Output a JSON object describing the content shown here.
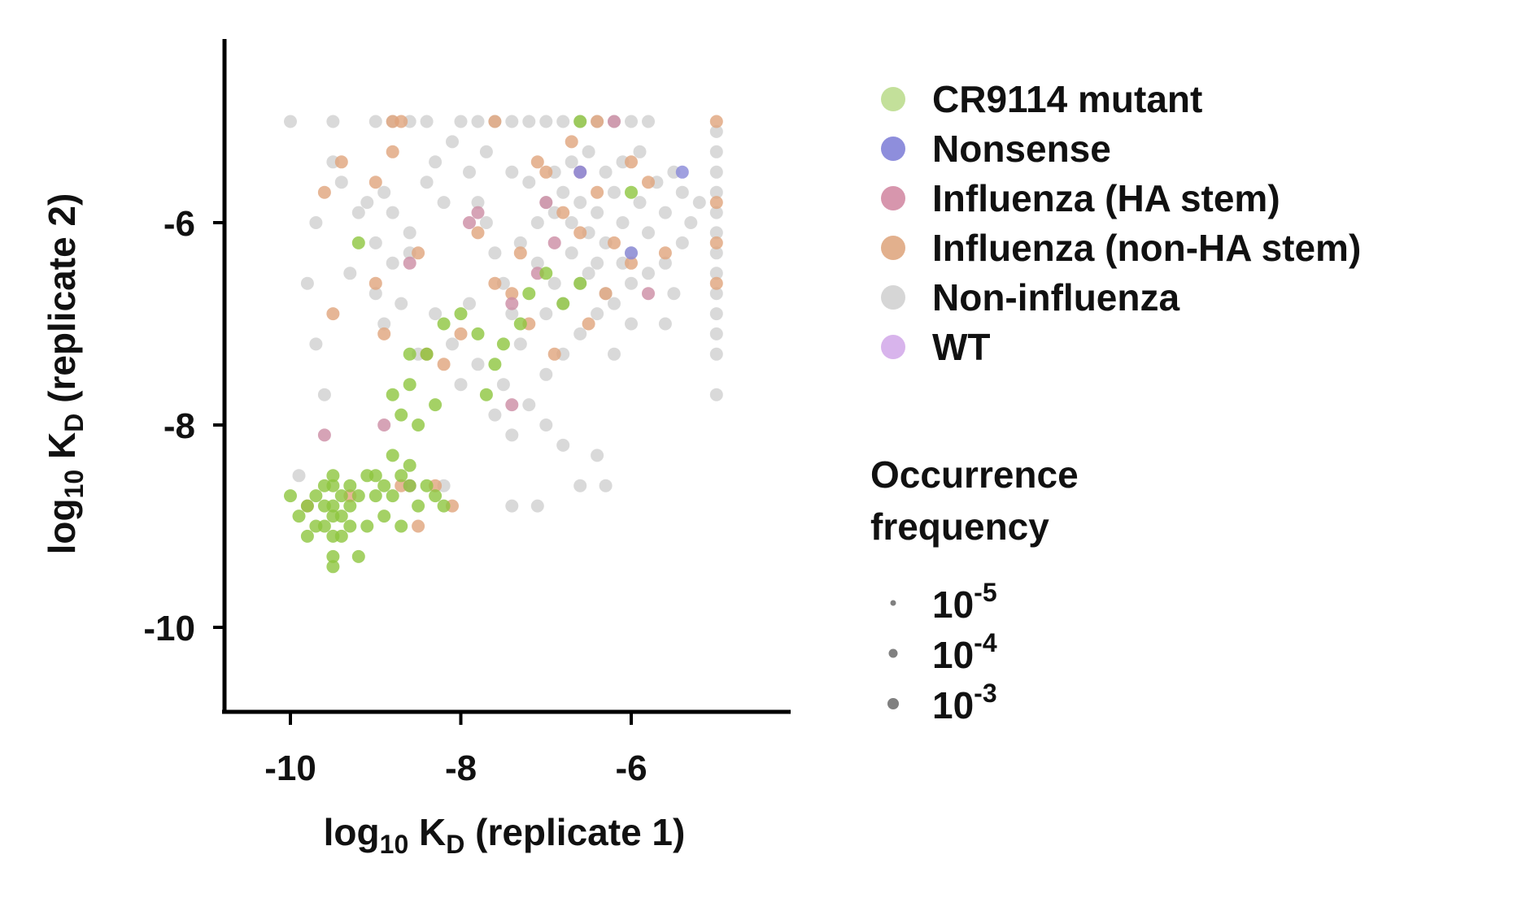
{
  "chart_data": {
    "type": "scatter",
    "xlabel": {
      "main": "log",
      "sub": "10",
      "mid": " K",
      "sub2": "D",
      "tail": " (replicate 1)"
    },
    "ylabel": {
      "main": "log",
      "sub": "10",
      "mid": " K",
      "sub2": "D",
      "tail": " (replicate 2)"
    },
    "xlim": [
      -10.7,
      -4.4
    ],
    "ylim": [
      -10.8,
      -4.2
    ],
    "xticks": [
      {
        "value": -10,
        "label": "-10"
      },
      {
        "value": -8,
        "label": "-8"
      },
      {
        "value": -6,
        "label": "-6"
      }
    ],
    "yticks": [
      {
        "value": -10,
        "label": "-10"
      },
      {
        "value": -8,
        "label": "-8"
      },
      {
        "value": -6,
        "label": "-6"
      }
    ],
    "grid": false,
    "legend_placement": "right",
    "series": [
      {
        "name": "Non-influenza",
        "color": "#cfcfcf",
        "points": [
          [
            -10.0,
            -5.0
          ],
          [
            -9.5,
            -5.0
          ],
          [
            -9.0,
            -5.0
          ],
          [
            -8.8,
            -5.0
          ],
          [
            -8.6,
            -5.0
          ],
          [
            -8.4,
            -5.0
          ],
          [
            -8.0,
            -5.0
          ],
          [
            -7.8,
            -5.0
          ],
          [
            -7.6,
            -5.0
          ],
          [
            -7.4,
            -5.0
          ],
          [
            -7.2,
            -5.0
          ],
          [
            -7.0,
            -5.0
          ],
          [
            -6.8,
            -5.0
          ],
          [
            -6.6,
            -5.0
          ],
          [
            -6.4,
            -5.0
          ],
          [
            -6.2,
            -5.0
          ],
          [
            -6.0,
            -5.0
          ],
          [
            -5.8,
            -5.0
          ],
          [
            -5.0,
            -5.1
          ],
          [
            -5.0,
            -5.3
          ],
          [
            -5.0,
            -5.5
          ],
          [
            -5.0,
            -5.7
          ],
          [
            -5.0,
            -5.9
          ],
          [
            -5.0,
            -6.1
          ],
          [
            -5.0,
            -6.3
          ],
          [
            -5.0,
            -6.5
          ],
          [
            -5.0,
            -6.7
          ],
          [
            -5.0,
            -6.9
          ],
          [
            -5.0,
            -7.1
          ],
          [
            -5.0,
            -7.3
          ],
          [
            -5.0,
            -7.7
          ],
          [
            -9.5,
            -5.4
          ],
          [
            -9.4,
            -5.6
          ],
          [
            -9.7,
            -6.0
          ],
          [
            -9.2,
            -5.9
          ],
          [
            -9.0,
            -6.2
          ],
          [
            -8.8,
            -6.4
          ],
          [
            -9.3,
            -6.5
          ],
          [
            -9.8,
            -6.6
          ],
          [
            -8.7,
            -6.8
          ],
          [
            -8.9,
            -7.0
          ],
          [
            -9.7,
            -7.2
          ],
          [
            -9.1,
            -5.8
          ],
          [
            -8.9,
            -5.7
          ],
          [
            -8.6,
            -6.1
          ],
          [
            -8.4,
            -5.6
          ],
          [
            -8.2,
            -5.8
          ],
          [
            -8.5,
            -7.3
          ],
          [
            -7.9,
            -5.5
          ],
          [
            -7.8,
            -5.8
          ],
          [
            -7.7,
            -6.0
          ],
          [
            -7.6,
            -6.3
          ],
          [
            -7.5,
            -6.6
          ],
          [
            -7.4,
            -6.9
          ],
          [
            -7.3,
            -7.2
          ],
          [
            -7.5,
            -7.6
          ],
          [
            -7.2,
            -7.8
          ],
          [
            -7.0,
            -7.5
          ],
          [
            -6.8,
            -7.3
          ],
          [
            -6.6,
            -7.1
          ],
          [
            -6.4,
            -6.9
          ],
          [
            -6.2,
            -6.8
          ],
          [
            -6.0,
            -6.6
          ],
          [
            -5.8,
            -6.5
          ],
          [
            -5.6,
            -6.4
          ],
          [
            -5.4,
            -6.2
          ],
          [
            -7.2,
            -5.6
          ],
          [
            -7.0,
            -5.8
          ],
          [
            -6.9,
            -5.9
          ],
          [
            -6.8,
            -5.7
          ],
          [
            -6.7,
            -6.0
          ],
          [
            -6.6,
            -5.8
          ],
          [
            -6.5,
            -6.1
          ],
          [
            -6.4,
            -5.9
          ],
          [
            -6.3,
            -6.2
          ],
          [
            -6.2,
            -5.7
          ],
          [
            -6.1,
            -6.0
          ],
          [
            -6.0,
            -6.3
          ],
          [
            -5.9,
            -5.8
          ],
          [
            -5.8,
            -6.1
          ],
          [
            -5.7,
            -5.6
          ],
          [
            -5.6,
            -5.9
          ],
          [
            -5.5,
            -5.5
          ],
          [
            -5.4,
            -5.7
          ],
          [
            -7.1,
            -6.4
          ],
          [
            -6.9,
            -6.6
          ],
          [
            -6.7,
            -6.3
          ],
          [
            -6.5,
            -6.5
          ],
          [
            -6.3,
            -6.7
          ],
          [
            -6.1,
            -6.4
          ],
          [
            -7.0,
            -6.9
          ],
          [
            -6.8,
            -6.8
          ],
          [
            -6.6,
            -6.6
          ],
          [
            -6.4,
            -6.4
          ],
          [
            -7.3,
            -6.2
          ],
          [
            -7.1,
            -6.0
          ],
          [
            -6.9,
            -5.5
          ],
          [
            -6.7,
            -5.4
          ],
          [
            -6.5,
            -5.3
          ],
          [
            -6.3,
            -5.5
          ],
          [
            -6.1,
            -5.4
          ],
          [
            -5.9,
            -5.3
          ],
          [
            -7.6,
            -7.9
          ],
          [
            -7.4,
            -8.1
          ],
          [
            -7.0,
            -8.0
          ],
          [
            -6.8,
            -8.2
          ],
          [
            -6.4,
            -8.3
          ],
          [
            -6.6,
            -8.6
          ],
          [
            -6.3,
            -8.6
          ],
          [
            -7.1,
            -8.8
          ],
          [
            -7.4,
            -8.8
          ],
          [
            -8.2,
            -8.6
          ],
          [
            -9.6,
            -7.7
          ],
          [
            -9.9,
            -8.5
          ],
          [
            -5.2,
            -5.8
          ],
          [
            -5.3,
            -6.0
          ],
          [
            -5.5,
            -6.7
          ],
          [
            -5.6,
            -7.0
          ],
          [
            -6.0,
            -7.0
          ],
          [
            -6.2,
            -7.3
          ],
          [
            -8.3,
            -6.9
          ],
          [
            -8.1,
            -7.2
          ],
          [
            -8.0,
            -7.6
          ],
          [
            -7.8,
            -7.4
          ],
          [
            -8.6,
            -6.3
          ],
          [
            -8.8,
            -5.9
          ],
          [
            -9.0,
            -6.7
          ],
          [
            -7.7,
            -5.3
          ],
          [
            -8.1,
            -5.2
          ],
          [
            -8.3,
            -5.4
          ],
          [
            -7.4,
            -5.5
          ],
          [
            -7.9,
            -6.8
          ]
        ]
      },
      {
        "name": "Influenza (non-HA stem)",
        "color": "#e0a47c",
        "points": [
          [
            -8.8,
            -5.0
          ],
          [
            -8.7,
            -5.0
          ],
          [
            -7.6,
            -5.0
          ],
          [
            -6.4,
            -5.0
          ],
          [
            -5.0,
            -5.0
          ],
          [
            -9.4,
            -5.4
          ],
          [
            -9.6,
            -5.7
          ],
          [
            -9.0,
            -5.6
          ],
          [
            -8.8,
            -5.3
          ],
          [
            -9.5,
            -6.9
          ],
          [
            -8.5,
            -6.3
          ],
          [
            -9.0,
            -6.6
          ],
          [
            -8.4,
            -7.3
          ],
          [
            -8.9,
            -7.1
          ],
          [
            -8.2,
            -7.4
          ],
          [
            -8.0,
            -7.1
          ],
          [
            -7.8,
            -6.1
          ],
          [
            -7.6,
            -6.6
          ],
          [
            -7.4,
            -6.7
          ],
          [
            -7.2,
            -7.0
          ],
          [
            -7.0,
            -5.5
          ],
          [
            -6.8,
            -5.9
          ],
          [
            -6.6,
            -6.1
          ],
          [
            -6.4,
            -5.7
          ],
          [
            -6.2,
            -6.2
          ],
          [
            -6.0,
            -6.4
          ],
          [
            -5.8,
            -5.6
          ],
          [
            -5.6,
            -6.3
          ],
          [
            -5.0,
            -5.8
          ],
          [
            -5.0,
            -6.2
          ],
          [
            -5.0,
            -6.6
          ],
          [
            -6.9,
            -7.3
          ],
          [
            -6.5,
            -7.0
          ],
          [
            -8.3,
            -8.6
          ],
          [
            -8.1,
            -8.8
          ],
          [
            -8.5,
            -9.0
          ],
          [
            -9.8,
            -8.8
          ],
          [
            -9.3,
            -8.7
          ],
          [
            -8.7,
            -8.6
          ],
          [
            -7.1,
            -5.4
          ],
          [
            -6.7,
            -5.2
          ],
          [
            -6.0,
            -5.4
          ],
          [
            -7.3,
            -6.3
          ],
          [
            -6.3,
            -6.7
          ]
        ]
      },
      {
        "name": "Influenza (HA stem)",
        "color": "#cc8ca4",
        "points": [
          [
            -9.6,
            -8.1
          ],
          [
            -8.9,
            -8.0
          ],
          [
            -8.6,
            -6.4
          ],
          [
            -7.9,
            -6.0
          ],
          [
            -7.8,
            -5.9
          ],
          [
            -7.4,
            -6.8
          ],
          [
            -7.1,
            -6.5
          ],
          [
            -6.9,
            -6.2
          ],
          [
            -6.6,
            -5.5
          ],
          [
            -6.2,
            -5.0
          ],
          [
            -5.8,
            -6.7
          ],
          [
            -7.4,
            -7.8
          ],
          [
            -8.6,
            -8.6
          ],
          [
            -7.0,
            -5.8
          ]
        ]
      },
      {
        "name": "CR9114 mutant",
        "color": "#8dc63f",
        "points": [
          [
            -9.7,
            -8.7
          ],
          [
            -9.6,
            -8.8
          ],
          [
            -9.5,
            -8.6
          ],
          [
            -9.5,
            -8.9
          ],
          [
            -9.4,
            -8.7
          ],
          [
            -9.6,
            -8.6
          ],
          [
            -9.5,
            -8.8
          ],
          [
            -9.4,
            -8.9
          ],
          [
            -9.6,
            -9.0
          ],
          [
            -9.5,
            -9.1
          ],
          [
            -9.3,
            -8.8
          ],
          [
            -9.7,
            -9.0
          ],
          [
            -9.4,
            -9.1
          ],
          [
            -9.5,
            -9.3
          ],
          [
            -9.2,
            -9.3
          ],
          [
            -9.5,
            -8.5
          ],
          [
            -9.8,
            -8.8
          ],
          [
            -9.3,
            -8.6
          ],
          [
            -9.0,
            -8.5
          ],
          [
            -8.9,
            -8.6
          ],
          [
            -8.8,
            -8.7
          ],
          [
            -8.7,
            -8.5
          ],
          [
            -8.6,
            -8.6
          ],
          [
            -8.5,
            -8.8
          ],
          [
            -8.9,
            -8.9
          ],
          [
            -9.0,
            -8.7
          ],
          [
            -8.7,
            -9.0
          ],
          [
            -8.4,
            -8.6
          ],
          [
            -8.3,
            -8.7
          ],
          [
            -8.2,
            -8.8
          ],
          [
            -9.1,
            -9.0
          ],
          [
            -8.8,
            -8.3
          ],
          [
            -8.6,
            -8.4
          ],
          [
            -8.5,
            -8.0
          ],
          [
            -8.7,
            -7.9
          ],
          [
            -8.3,
            -7.8
          ],
          [
            -10.0,
            -8.7
          ],
          [
            -9.9,
            -8.9
          ],
          [
            -9.8,
            -9.1
          ],
          [
            -8.6,
            -7.6
          ],
          [
            -8.4,
            -7.3
          ],
          [
            -8.2,
            -7.0
          ],
          [
            -8.0,
            -6.9
          ],
          [
            -7.8,
            -7.1
          ],
          [
            -7.6,
            -7.4
          ],
          [
            -7.5,
            -7.2
          ],
          [
            -7.3,
            -7.0
          ],
          [
            -7.2,
            -6.7
          ],
          [
            -7.0,
            -6.5
          ],
          [
            -6.8,
            -6.8
          ],
          [
            -6.6,
            -6.6
          ],
          [
            -9.2,
            -6.2
          ],
          [
            -7.7,
            -7.7
          ],
          [
            -6.6,
            -5.0
          ],
          [
            -6.0,
            -5.7
          ],
          [
            -9.5,
            -9.4
          ],
          [
            -9.3,
            -9.0
          ],
          [
            -9.2,
            -8.7
          ],
          [
            -9.1,
            -8.5
          ],
          [
            -8.6,
            -7.3
          ],
          [
            -8.8,
            -7.7
          ]
        ]
      },
      {
        "name": "Nonsense",
        "color": "#8888d8",
        "points": [
          [
            -5.4,
            -5.5
          ],
          [
            -6.6,
            -5.5
          ],
          [
            -6.0,
            -6.3
          ]
        ]
      },
      {
        "name": "WT",
        "color": "#d2aae6",
        "points": []
      }
    ],
    "legend": {
      "categories": [
        "CR9114 mutant",
        "Nonsense",
        "Influenza (HA stem)",
        "Influenza (non-HA stem)",
        "Non-influenza",
        "WT"
      ],
      "colors": [
        "#c3e09a",
        "#8e8edc",
        "#d796ad",
        "#e2b08d",
        "#d6d6d6",
        "#d8b4ec"
      ],
      "size_title_lines": [
        "Occurrence",
        "frequency"
      ],
      "size_items": [
        {
          "base": "10",
          "exp": "-5",
          "color": "#808080"
        },
        {
          "base": "10",
          "exp": "-4",
          "color": "#808080"
        },
        {
          "base": "10",
          "exp": "-3",
          "color": "#808080"
        }
      ]
    }
  }
}
